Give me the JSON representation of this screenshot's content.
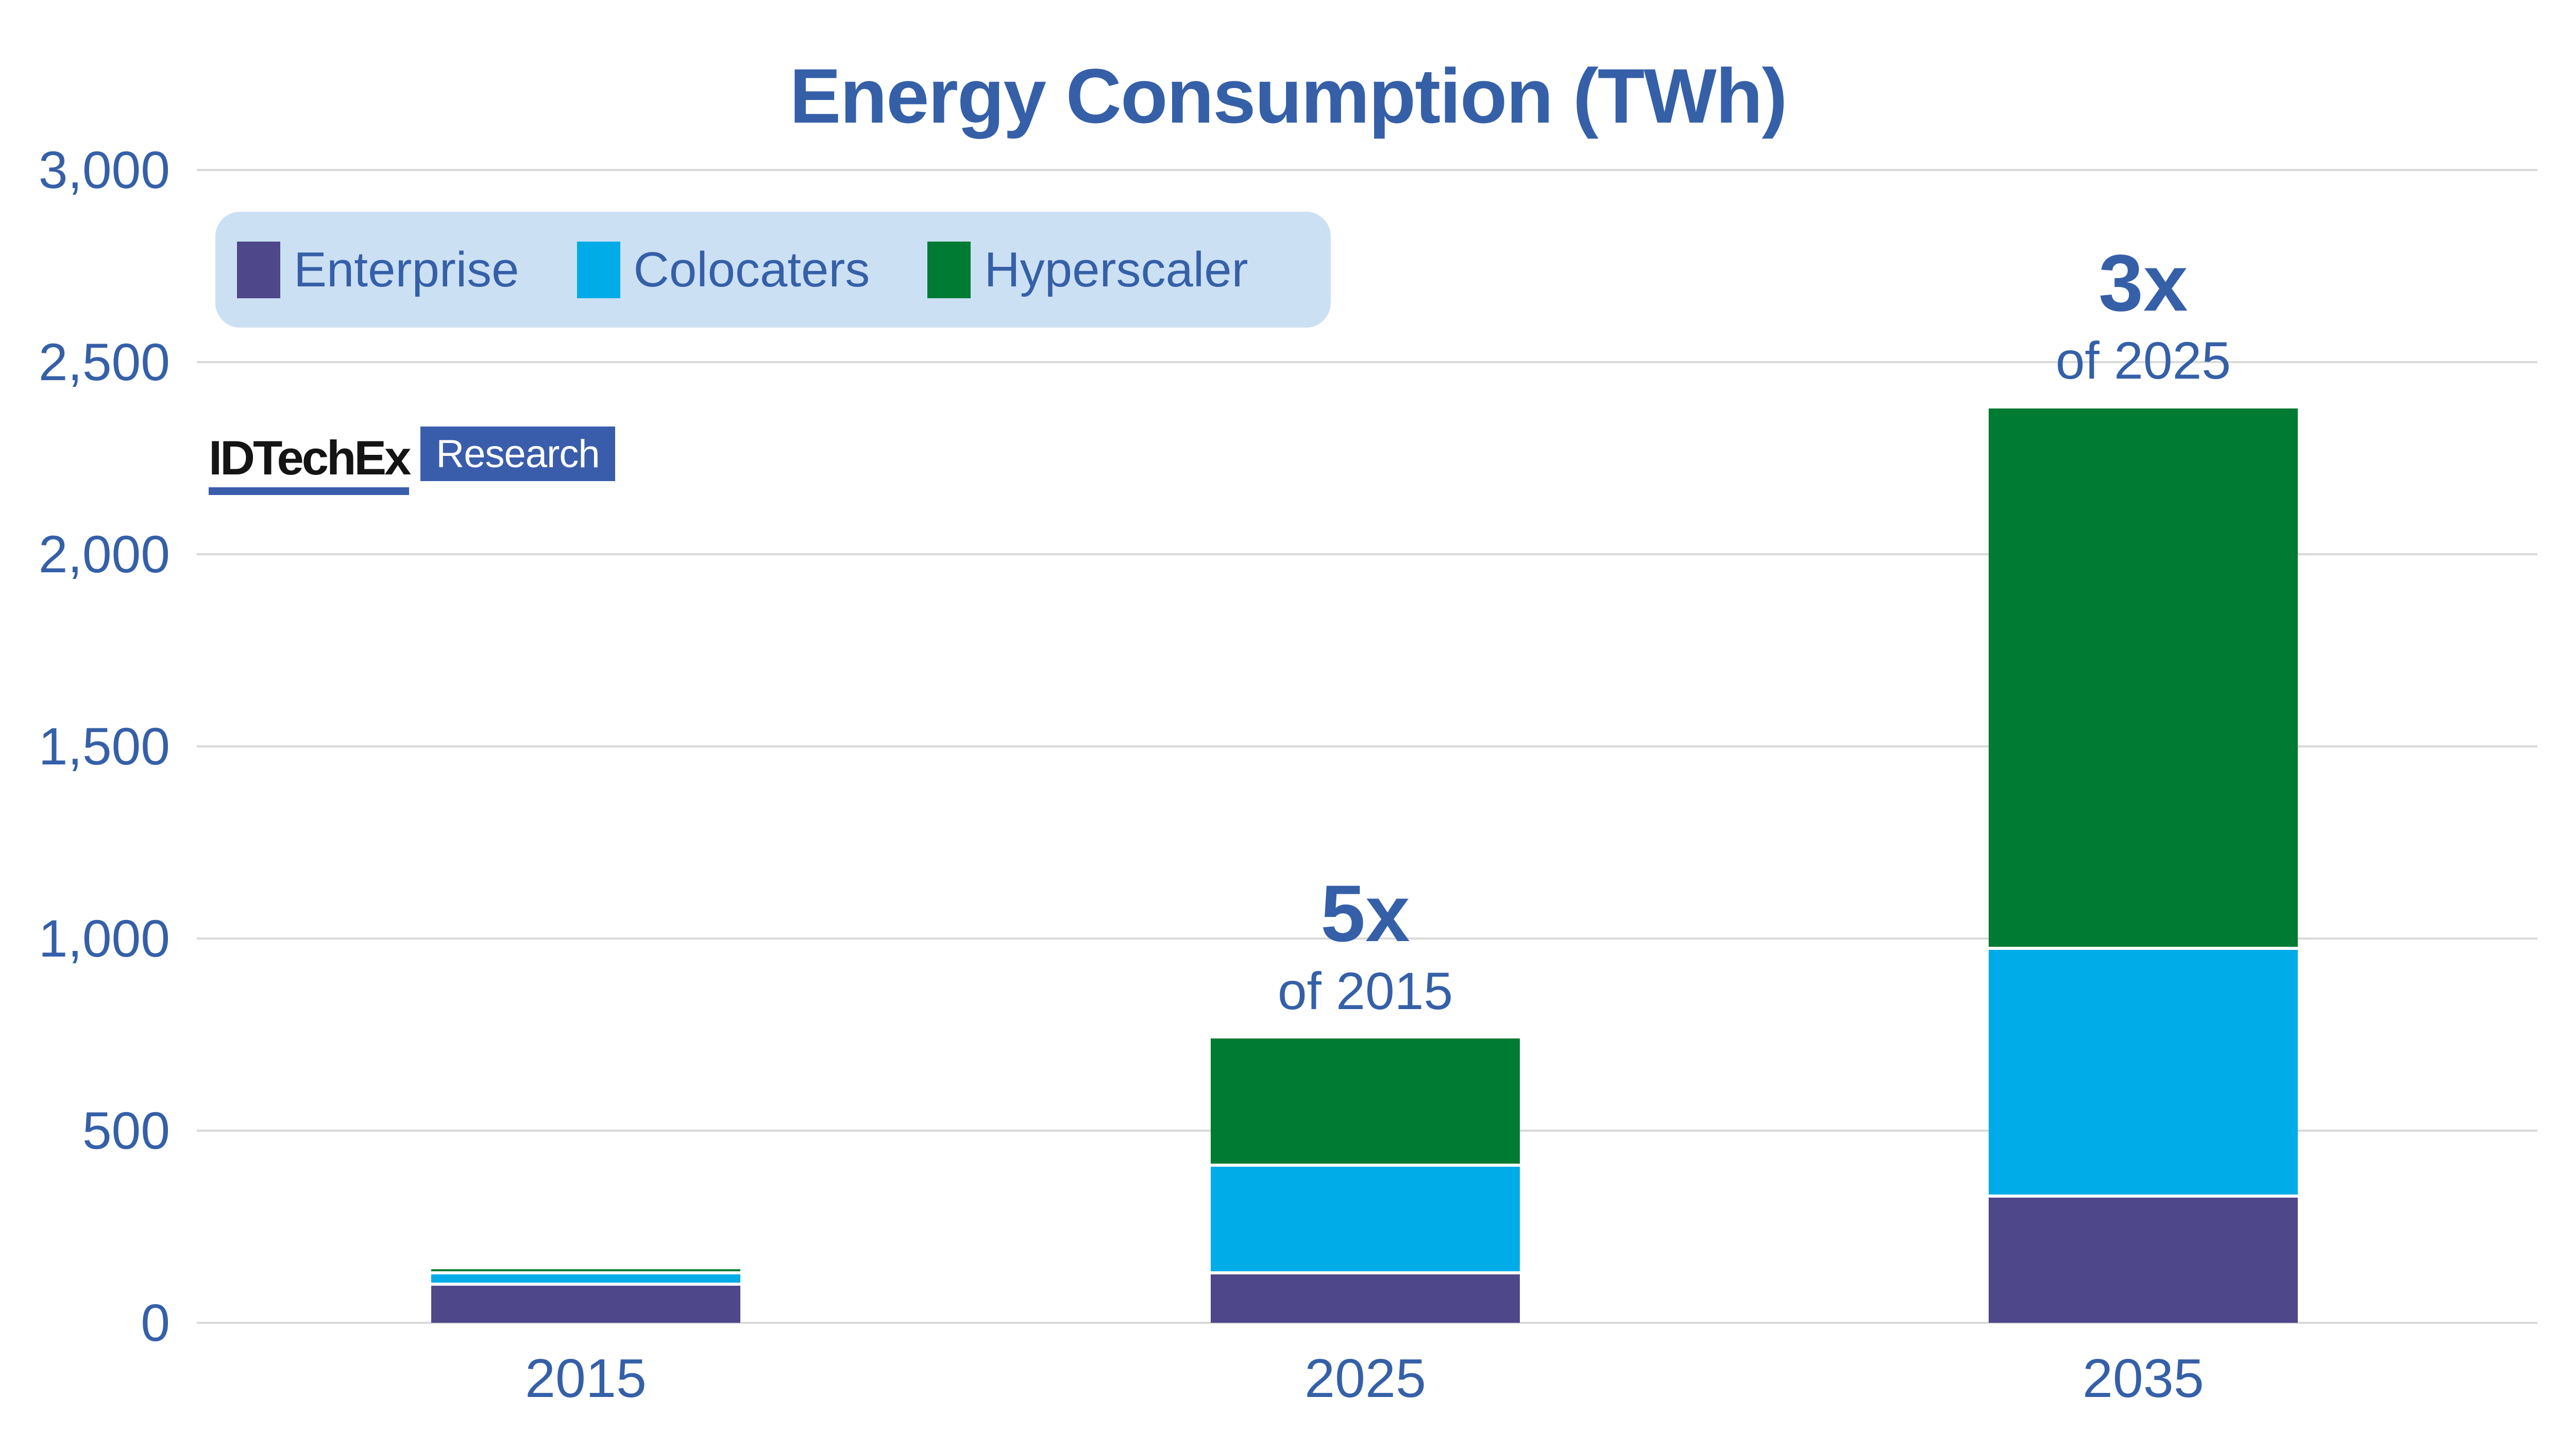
{
  "title": "Energy Consumption (TWh)",
  "logo": {
    "brand": "IDTechEx",
    "suffix": "Research"
  },
  "legend": {
    "items": [
      {
        "label": "Enterprise",
        "color": "#4e4789"
      },
      {
        "label": "Colocaters",
        "color": "#00ace8"
      },
      {
        "label": "Hyperscaler",
        "color": "#007b33"
      }
    ],
    "background": "#cce0f4"
  },
  "annotations": [
    {
      "category": "2025",
      "big": "5x",
      "small": "of 2015"
    },
    {
      "category": "2035",
      "big": "3x",
      "small": "of 2025"
    }
  ],
  "colors": {
    "accent_text": "#3560a8",
    "gridline": "#d9d9d9",
    "enterprise": "#4e4789",
    "colocaters": "#00ace8",
    "hyperscaler": "#007b33",
    "logo_blue": "#3a5dab",
    "legend_background": "#cce0f4",
    "background": "#ffffff"
  },
  "chart_data": {
    "type": "bar",
    "stacked": true,
    "title": "Energy Consumption (TWh)",
    "xlabel": "",
    "ylabel": "",
    "categories": [
      "2015",
      "2025",
      "2035"
    ],
    "series": [
      {
        "name": "Enterprise",
        "color": "#4e4789",
        "values": [
          100,
          130,
          330
        ]
      },
      {
        "name": "Colocaters",
        "color": "#00ace8",
        "values": [
          30,
          280,
          645
        ]
      },
      {
        "name": "Hyperscaler",
        "color": "#007b33",
        "values": [
          10,
          330,
          1405
        ]
      }
    ],
    "totals": [
      140,
      740,
      2380
    ],
    "ylim": [
      0,
      3000
    ],
    "ytick_interval": 500,
    "ytick_labels": [
      "0",
      "500",
      "1,000",
      "1,500",
      "2,000",
      "2,500",
      "3,000"
    ],
    "grid": true,
    "legend_position": "top-left",
    "annotations": [
      {
        "category": "2025",
        "text": "5x of 2015"
      },
      {
        "category": "2035",
        "text": "3x of 2025"
      }
    ]
  }
}
